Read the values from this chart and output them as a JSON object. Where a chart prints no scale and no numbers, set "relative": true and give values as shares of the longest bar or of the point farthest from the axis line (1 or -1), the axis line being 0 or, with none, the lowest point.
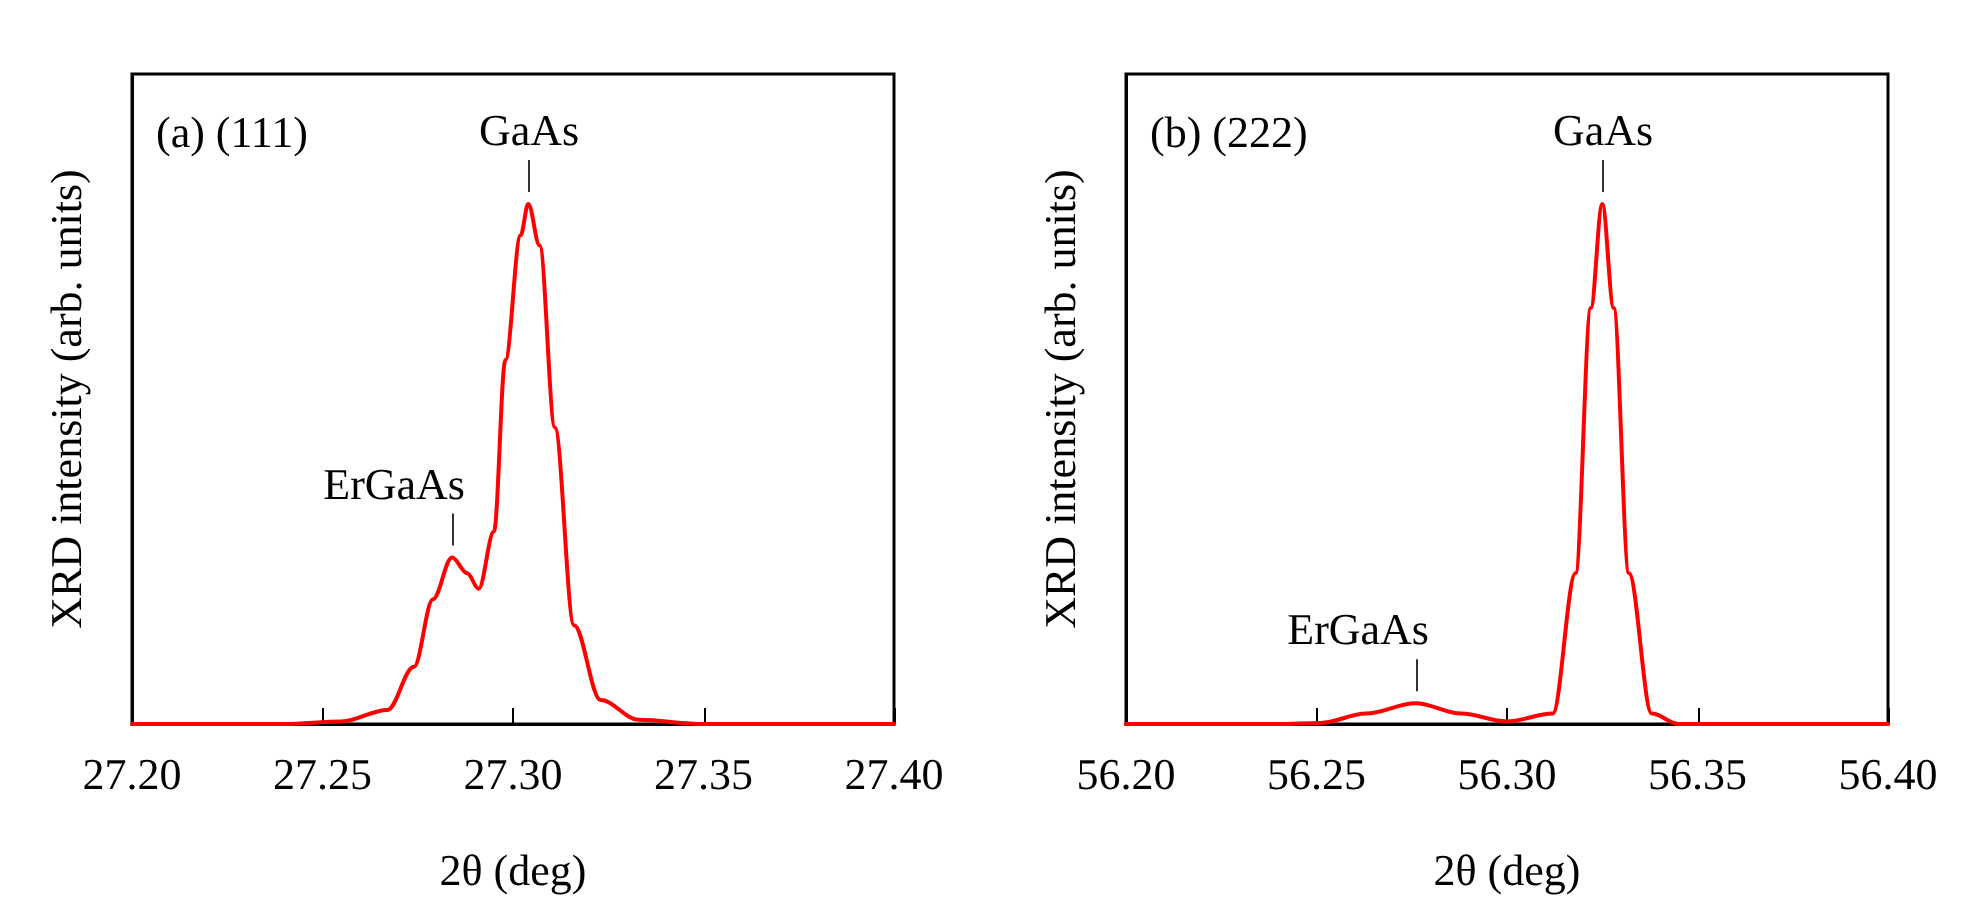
{
  "chart_data": [
    {
      "type": "line",
      "relative": true,
      "xlabel": "2θ (deg)",
      "ylabel": "XRD intensity (arb. units)",
      "marker": "none",
      "line_style": "solid",
      "grid": false,
      "xlim": [
        27.2,
        27.4
      ],
      "xticks": [
        {
          "value": 27.2,
          "label": "27.20"
        },
        {
          "value": 27.25,
          "label": "27.25"
        },
        {
          "value": 27.3,
          "label": "27.30"
        },
        {
          "value": 27.35,
          "label": "27.35"
        },
        {
          "value": 27.4,
          "label": "27.40"
        }
      ],
      "x": [
        27.2,
        27.24,
        27.255,
        27.267,
        27.274,
        27.279,
        27.284,
        27.288,
        27.291,
        27.295,
        27.298,
        27.302,
        27.304,
        27.307,
        27.311,
        27.316,
        27.323,
        27.333,
        27.35,
        27.4
      ],
      "series": [
        {
          "color": "#ff0000",
          "values": [
            0,
            0,
            0.005,
            0.027,
            0.11,
            0.24,
            0.32,
            0.29,
            0.26,
            0.37,
            0.7,
            0.94,
            1,
            0.92,
            0.57,
            0.19,
            0.046,
            0.008,
            0,
            0
          ]
        }
      ],
      "annotations": [
        "(a) (111)",
        {
          "text": "GaAs",
          "x": 27.304,
          "y": 1
        },
        {
          "text": "ErGaAs",
          "x": 27.284,
          "y": 0.32
        }
      ]
    },
    {
      "type": "line",
      "relative": true,
      "xlabel": "2θ (deg)",
      "ylabel": "XRD intensity (arb. units)",
      "marker": "none",
      "line_style": "solid",
      "grid": false,
      "xlim": [
        56.2,
        56.4
      ],
      "xticks": [
        {
          "value": 56.2,
          "label": "56.20"
        },
        {
          "value": 56.25,
          "label": "56.25"
        },
        {
          "value": 56.3,
          "label": "56.30"
        },
        {
          "value": 56.35,
          "label": "56.35"
        },
        {
          "value": 56.4,
          "label": "56.40"
        }
      ],
      "x": [
        56.2,
        56.24,
        56.251,
        56.263,
        56.276,
        56.288,
        56.3,
        56.312,
        56.318,
        56.322,
        56.325,
        56.328,
        56.332,
        56.338,
        56.345,
        56.4
      ],
      "series": [
        {
          "color": "#ff0000",
          "values": [
            0,
            0,
            0.002,
            0.02,
            0.04,
            0.02,
            0.005,
            0.02,
            0.29,
            0.8,
            1,
            0.8,
            0.29,
            0.02,
            0,
            0
          ]
        }
      ],
      "annotations": [
        "(b) (222)",
        {
          "text": "GaAs",
          "x": 56.325,
          "y": 1
        },
        {
          "text": "ErGaAs",
          "x": 56.276,
          "y": 0.04
        }
      ]
    }
  ]
}
